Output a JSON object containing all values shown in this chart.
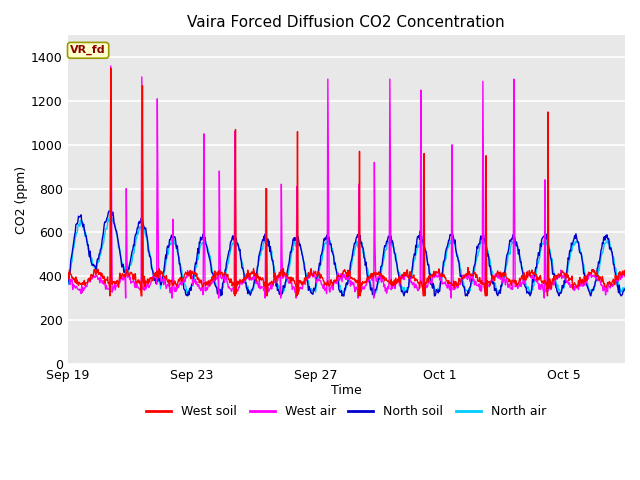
{
  "title": "Vaira Forced Diffusion CO2 Concentration",
  "xlabel": "Time",
  "ylabel": "CO2 (ppm)",
  "ylim": [
    0,
    1500
  ],
  "yticks": [
    0,
    200,
    400,
    600,
    800,
    1000,
    1200,
    1400
  ],
  "colors": {
    "west_soil": "#ff0000",
    "west_air": "#ff00ff",
    "north_soil": "#0000cc",
    "north_air": "#00ccff"
  },
  "legend_label_box": "VR_fd",
  "legend_box_facecolor": "#ffffcc",
  "legend_box_edgecolor": "#999900",
  "fig_facecolor": "#ffffff",
  "ax_facecolor": "#e8e8e8",
  "grid_color": "#ffffff",
  "xtick_labels": [
    "Sep 19",
    "Sep 23",
    "Sep 27",
    "Oct 1",
    "Oct 5"
  ],
  "linewidth": 1.0
}
